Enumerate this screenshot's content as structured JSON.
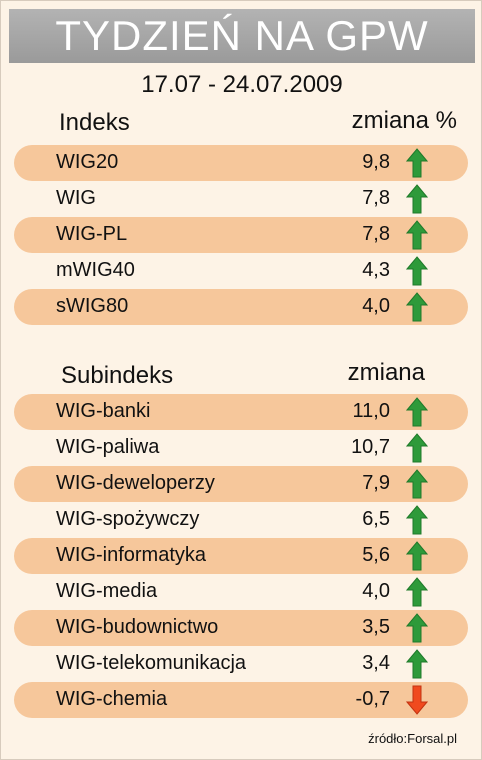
{
  "title": "TYDZIEŃ NA GPW",
  "date_range": "17.07 - 24.07.2009",
  "indexes": {
    "col_name": "Indeks",
    "col_change": "zmiana %",
    "rows": [
      {
        "name": "WIG20",
        "value": "9,8",
        "trend": "up"
      },
      {
        "name": "WIG",
        "value": "7,8",
        "trend": "up"
      },
      {
        "name": "WIG-PL",
        "value": "7,8",
        "trend": "up"
      },
      {
        "name": "mWIG40",
        "value": "4,3",
        "trend": "up"
      },
      {
        "name": "sWIG80",
        "value": "4,0",
        "trend": "up"
      }
    ]
  },
  "subindexes": {
    "col_name": "Subindeks",
    "col_change": "zmiana",
    "rows": [
      {
        "name": "WIG-banki",
        "value": "11,0",
        "trend": "up"
      },
      {
        "name": "WIG-paliwa",
        "value": "10,7",
        "trend": "up"
      },
      {
        "name": "WIG-deweloperzy",
        "value": "7,9",
        "trend": "up"
      },
      {
        "name": "WIG-spożywczy",
        "value": "6,5",
        "trend": "up"
      },
      {
        "name": "WIG-informatyka",
        "value": "5,6",
        "trend": "up"
      },
      {
        "name": "WIG-media",
        "value": "4,0",
        "trend": "up"
      },
      {
        "name": "WIG-budownictwo",
        "value": "3,5",
        "trend": "up"
      },
      {
        "name": "WIG-telekomunikacja",
        "value": "3,4",
        "trend": "up"
      },
      {
        "name": "WIG-chemia",
        "value": "-0,7",
        "trend": "down"
      }
    ]
  },
  "source": "źródło:Forsal.pl",
  "colors": {
    "up_arrow": "#2e9a3a",
    "down_arrow": "#f04a1e",
    "row_highlight": "#f6c79b",
    "background": "#fdf3e6",
    "banner": "#a6a6a6"
  }
}
